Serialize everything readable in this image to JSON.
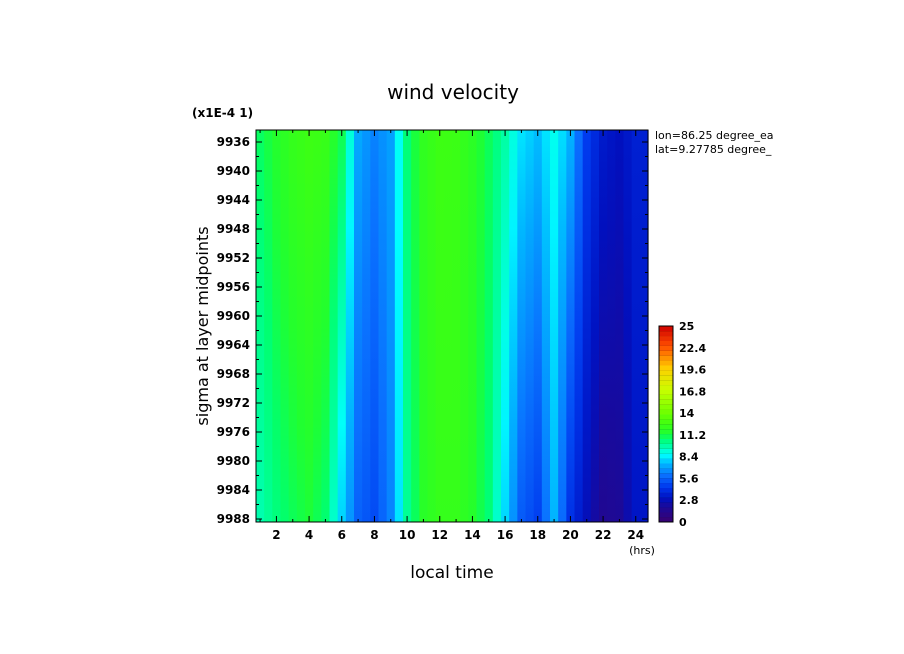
{
  "chart_data": {
    "type": "heatmap",
    "title": "wind velocity",
    "scale_note": "(x1E-4 1)",
    "xlabel": "local time",
    "x_unit": "(hrs)",
    "ylabel": "sigma at layer midpoints",
    "info": [
      "lon=86.25 degree_ea",
      "lat=9.27785 degree_"
    ],
    "x_ticks": [
      2,
      4,
      6,
      8,
      10,
      12,
      14,
      16,
      18,
      20,
      22,
      24
    ],
    "x_tick_labels": [
      "2",
      "4",
      "6",
      "8",
      "10",
      "12",
      "14",
      "16",
      "18",
      "20",
      "22",
      "24"
    ],
    "xlim": [
      0.75,
      24.75
    ],
    "y_tick_labels": [
      "9936",
      "9940",
      "9944",
      "9948",
      "9952",
      "9956",
      "9960",
      "9964",
      "9968",
      "9972",
      "9976",
      "9980",
      "9984",
      "9988"
    ],
    "ylim": [
      9934.5,
      9988
    ],
    "colorbar": {
      "range": [
        0,
        25
      ],
      "tick_labels": [
        "25",
        "22.4",
        "19.6",
        "16.8",
        "14",
        "11.2",
        "8.4",
        "5.6",
        "2.8",
        "0"
      ]
    },
    "hours": [
      1,
      2,
      3,
      4,
      5,
      6,
      7,
      8,
      9,
      10,
      11,
      12,
      13,
      14,
      15,
      16,
      17,
      18,
      19,
      20,
      21,
      22,
      23,
      24
    ],
    "value_top": [
      10.8,
      11.6,
      12.2,
      12.5,
      12.3,
      11.0,
      7.2,
      6.4,
      7.0,
      10.5,
      12.0,
      12.5,
      12.4,
      11.8,
      10.9,
      9.8,
      8.2,
      7.6,
      8.8,
      7.4,
      4.6,
      3.4,
      3.0,
      3.6
    ],
    "value_bottom": [
      9.6,
      10.4,
      10.9,
      11.3,
      10.6,
      7.9,
      5.6,
      5.0,
      6.4,
      10.0,
      11.7,
      12.2,
      12.2,
      11.6,
      10.5,
      8.0,
      5.4,
      4.7,
      7.4,
      4.2,
      2.8,
      1.6,
      1.8,
      3.2
    ]
  }
}
